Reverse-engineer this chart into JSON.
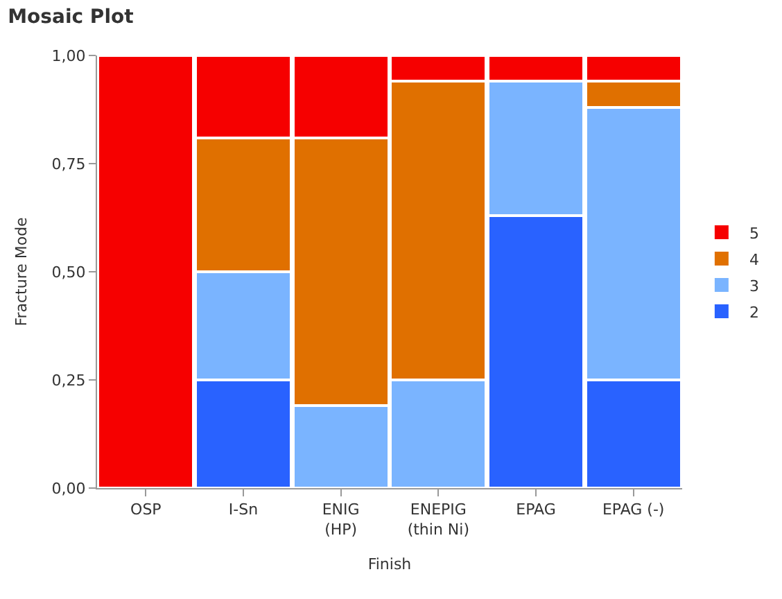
{
  "chart_data": {
    "type": "bar",
    "stacked": true,
    "title": "Mosaic Plot",
    "xlabel": "Finish",
    "ylabel": "Fracture Mode",
    "categories": [
      "OSP",
      "I-Sn",
      "ENIG\n(HP)",
      "ENEPIG\n(thin Ni)",
      "EPAG",
      "EPAG (-)"
    ],
    "series": [
      {
        "name": "2",
        "color": "#2962ff",
        "values": [
          0,
          0.25,
          0,
          0,
          0.63,
          0.25
        ]
      },
      {
        "name": "3",
        "color": "#7ab4ff",
        "values": [
          0,
          0.25,
          0.19,
          0.25,
          0.31,
          0.63
        ]
      },
      {
        "name": "4",
        "color": "#e07000",
        "values": [
          0,
          0.31,
          0.62,
          0.69,
          0,
          0.06
        ]
      },
      {
        "name": "5",
        "color": "#f60000",
        "values": [
          1,
          0.19,
          0.19,
          0.06,
          0.06,
          0.06
        ]
      }
    ],
    "ylim": [
      0,
      1
    ],
    "yticks": [
      {
        "value": 0,
        "label": "0,00"
      },
      {
        "value": 0.25,
        "label": "0,25"
      },
      {
        "value": 0.5,
        "label": "0,50"
      },
      {
        "value": 0.75,
        "label": "0,75"
      },
      {
        "value": 1,
        "label": "1,00"
      }
    ],
    "legend": "right"
  }
}
